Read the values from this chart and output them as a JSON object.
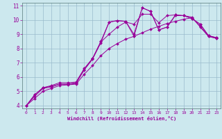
{
  "xlabel": "Windchill (Refroidissement éolien,°C)",
  "bg_color": "#cce8ee",
  "grid_color": "#99bbcc",
  "line_color": "#990099",
  "xlim": [
    -0.5,
    23.5
  ],
  "ylim": [
    3.8,
    11.2
  ],
  "yticks": [
    4,
    5,
    6,
    7,
    8,
    9,
    10,
    11
  ],
  "xticks": [
    0,
    1,
    2,
    3,
    4,
    5,
    6,
    7,
    8,
    9,
    10,
    11,
    12,
    13,
    14,
    15,
    16,
    17,
    18,
    19,
    20,
    21,
    22,
    23
  ],
  "series": [
    [
      4.0,
      4.75,
      5.25,
      5.35,
      5.5,
      5.5,
      5.6,
      6.55,
      7.3,
      8.5,
      9.85,
      9.95,
      9.9,
      8.85,
      10.85,
      10.6,
      9.3,
      9.5,
      10.35,
      10.3,
      10.1,
      9.7,
      8.9,
      8.75
    ],
    [
      4.0,
      4.75,
      5.25,
      5.4,
      5.6,
      5.6,
      5.65,
      6.6,
      7.3,
      8.45,
      9.0,
      9.5,
      9.85,
      9.7,
      10.4,
      10.4,
      9.8,
      10.3,
      10.35,
      10.3,
      10.2,
      9.5,
      8.85,
      8.7
    ],
    [
      4.0,
      4.65,
      5.2,
      5.3,
      5.5,
      5.5,
      5.55,
      6.5,
      7.25,
      8.4,
      9.85,
      9.95,
      9.9,
      9.0,
      10.85,
      10.6,
      9.3,
      9.5,
      10.3,
      10.3,
      10.1,
      9.7,
      8.9,
      8.75
    ],
    [
      4.0,
      4.5,
      5.0,
      5.2,
      5.4,
      5.45,
      5.5,
      6.2,
      6.8,
      7.5,
      8.0,
      8.35,
      8.65,
      8.85,
      9.1,
      9.35,
      9.55,
      9.75,
      9.9,
      10.05,
      10.15,
      9.55,
      8.85,
      8.7
    ]
  ]
}
